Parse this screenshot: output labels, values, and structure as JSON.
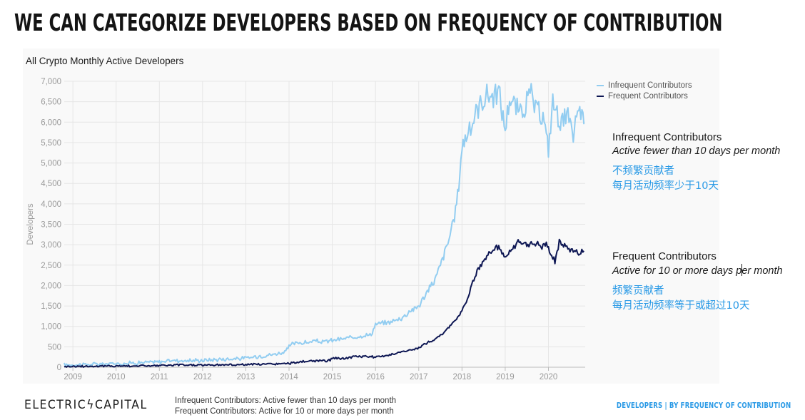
{
  "slide_title": "WE CAN CATEGORIZE DEVELOPERS BASED ON FREQUENCY OF CONTRIBUTION",
  "chart_data": {
    "type": "line",
    "title": "All Crypto Monthly Active Developers",
    "xlabel": "",
    "ylabel": "Developers",
    "ylim": [
      0,
      7000
    ],
    "yticks": [
      0,
      500,
      1000,
      1500,
      2000,
      2500,
      3000,
      3500,
      4000,
      4500,
      5000,
      5500,
      6000,
      6500,
      7000
    ],
    "ytick_labels": [
      "0",
      "500",
      "1,000",
      "1,500",
      "2,000",
      "2,500",
      "3,000",
      "3,500",
      "4,000",
      "4,500",
      "5,000",
      "5,500",
      "6,000",
      "6,500",
      "7,000"
    ],
    "xlim": [
      2008.8,
      2020.85
    ],
    "xticks": [
      2009,
      2010,
      2011,
      2012,
      2013,
      2014,
      2015,
      2016,
      2017,
      2018,
      2019,
      2020
    ],
    "xtick_labels": [
      "2009",
      "2010",
      "2011",
      "2012",
      "2013",
      "2014",
      "2015",
      "2016",
      "2017",
      "2018",
      "2019",
      "2020"
    ],
    "grid": true,
    "legend_position": "top-right",
    "series": [
      {
        "name": "Infrequent Contributors",
        "color": "#92cdf1",
        "points": [
          [
            2008.8,
            60
          ],
          [
            2009.5,
            70
          ],
          [
            2010.0,
            90
          ],
          [
            2010.5,
            110
          ],
          [
            2011.0,
            130
          ],
          [
            2011.3,
            170
          ],
          [
            2011.6,
            160
          ],
          [
            2012.0,
            170
          ],
          [
            2012.5,
            200
          ],
          [
            2013.0,
            220
          ],
          [
            2013.3,
            270
          ],
          [
            2013.6,
            310
          ],
          [
            2013.9,
            370
          ],
          [
            2014.05,
            560
          ],
          [
            2014.2,
            600
          ],
          [
            2014.4,
            600
          ],
          [
            2014.6,
            640
          ],
          [
            2014.8,
            620
          ],
          [
            2015.0,
            660
          ],
          [
            2015.3,
            700
          ],
          [
            2015.6,
            760
          ],
          [
            2015.9,
            800
          ],
          [
            2016.0,
            1050
          ],
          [
            2016.3,
            1100
          ],
          [
            2016.6,
            1200
          ],
          [
            2016.8,
            1380
          ],
          [
            2017.0,
            1500
          ],
          [
            2017.2,
            1850
          ],
          [
            2017.4,
            2200
          ],
          [
            2017.6,
            2800
          ],
          [
            2017.8,
            3500
          ],
          [
            2017.9,
            4200
          ],
          [
            2018.0,
            5400
          ],
          [
            2018.1,
            5700
          ],
          [
            2018.2,
            5800
          ],
          [
            2018.3,
            6200
          ],
          [
            2018.45,
            6500
          ],
          [
            2018.6,
            6700
          ],
          [
            2018.75,
            6600
          ],
          [
            2018.85,
            6780
          ],
          [
            2018.95,
            6100
          ],
          [
            2019.0,
            5850
          ],
          [
            2019.1,
            6600
          ],
          [
            2019.2,
            6450
          ],
          [
            2019.35,
            6200
          ],
          [
            2019.5,
            6500
          ],
          [
            2019.6,
            6700
          ],
          [
            2019.7,
            6300
          ],
          [
            2019.8,
            6200
          ],
          [
            2019.9,
            6100
          ],
          [
            2019.95,
            5600
          ],
          [
            2020.0,
            5350
          ],
          [
            2020.1,
            6500
          ],
          [
            2020.2,
            6200
          ],
          [
            2020.3,
            6000
          ],
          [
            2020.45,
            6150
          ],
          [
            2020.55,
            5600
          ],
          [
            2020.65,
            6100
          ],
          [
            2020.75,
            6300
          ],
          [
            2020.82,
            5950
          ]
        ]
      },
      {
        "name": "Frequent Contributors",
        "color": "#0d1653",
        "points": [
          [
            2008.8,
            20
          ],
          [
            2009.5,
            25
          ],
          [
            2010.0,
            30
          ],
          [
            2010.5,
            35
          ],
          [
            2011.0,
            40
          ],
          [
            2011.5,
            55
          ],
          [
            2012.0,
            55
          ],
          [
            2012.5,
            60
          ],
          [
            2013.0,
            65
          ],
          [
            2013.5,
            75
          ],
          [
            2014.0,
            90
          ],
          [
            2014.3,
            140
          ],
          [
            2014.6,
            150
          ],
          [
            2014.9,
            160
          ],
          [
            2015.0,
            210
          ],
          [
            2015.3,
            220
          ],
          [
            2015.6,
            270
          ],
          [
            2015.9,
            260
          ],
          [
            2016.0,
            240
          ],
          [
            2016.3,
            300
          ],
          [
            2016.6,
            380
          ],
          [
            2016.9,
            430
          ],
          [
            2017.0,
            480
          ],
          [
            2017.2,
            600
          ],
          [
            2017.4,
            700
          ],
          [
            2017.6,
            860
          ],
          [
            2017.8,
            1100
          ],
          [
            2017.95,
            1300
          ],
          [
            2018.1,
            1600
          ],
          [
            2018.25,
            2100
          ],
          [
            2018.4,
            2450
          ],
          [
            2018.55,
            2700
          ],
          [
            2018.7,
            2850
          ],
          [
            2018.85,
            2950
          ],
          [
            2019.0,
            2700
          ],
          [
            2019.15,
            2850
          ],
          [
            2019.3,
            3050
          ],
          [
            2019.5,
            3000
          ],
          [
            2019.7,
            3050
          ],
          [
            2019.85,
            2950
          ],
          [
            2019.95,
            3050
          ],
          [
            2020.05,
            2750
          ],
          [
            2020.15,
            2600
          ],
          [
            2020.25,
            3050
          ],
          [
            2020.4,
            2950
          ],
          [
            2020.55,
            2850
          ],
          [
            2020.7,
            2800
          ],
          [
            2020.82,
            2850
          ]
        ]
      }
    ]
  },
  "annotations": {
    "infrequent": {
      "title": "Infrequent Contributors",
      "subtitle": "Active fewer than 10 days per month",
      "cn_line1": "不频繁贡献者",
      "cn_line2": "每月活动频率少于10天"
    },
    "frequent": {
      "title": "Frequent Contributors",
      "subtitle_a": "Active for 10 or more days p",
      "subtitle_b": "er month",
      "cn_line1": "频繁贡献者",
      "cn_line2": "每月活动频率等于或超过10天"
    }
  },
  "footer": {
    "logo_left": "ELECTRIC",
    "logo_bolt": "ϟ",
    "logo_right": "CAPITAL",
    "note_line1": "Infrequent Contributors: Active fewer than 10 days per month",
    "note_line2": "Frequent Contributors: Active for 10 or more days per month",
    "section_label": "DEVELOPERS  |  BY FREQUENCY OF CONTRIBUTION"
  }
}
